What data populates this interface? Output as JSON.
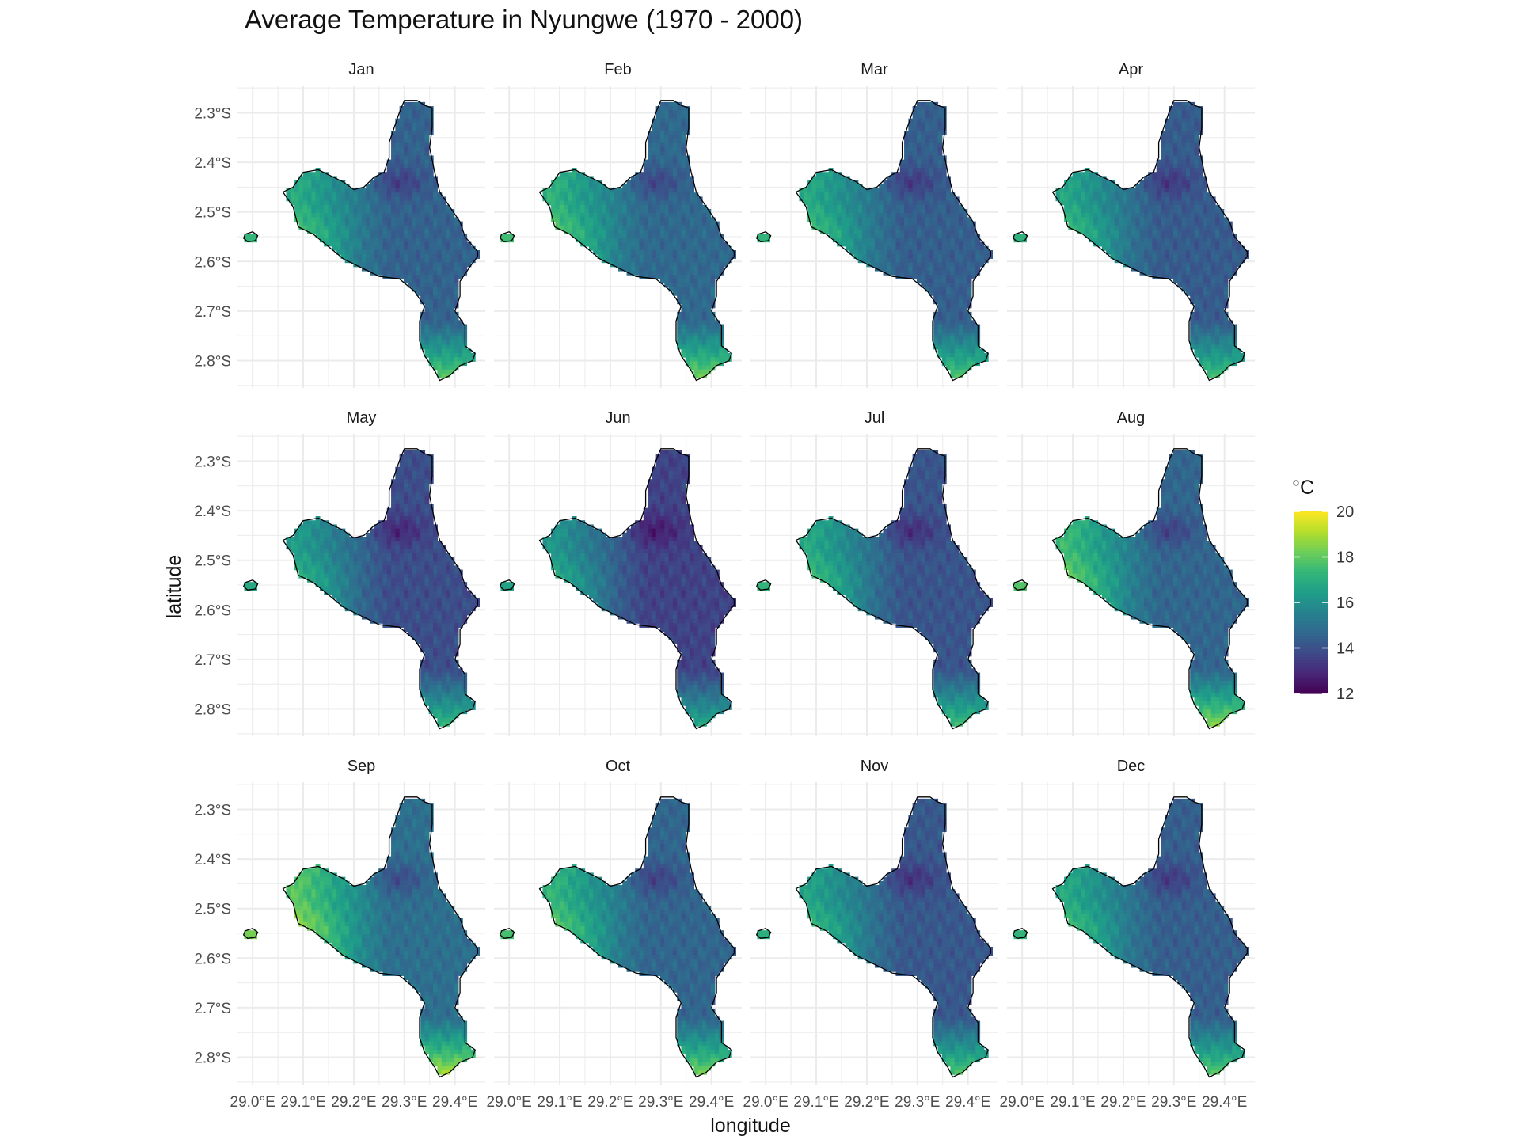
{
  "chart_data": {
    "type": "heatmap",
    "title": "Average Temperature in Nyungwe (1970 - 2000)",
    "xlabel": "longitude",
    "ylabel": "latitude",
    "facet_labels": [
      "Jan",
      "Feb",
      "Mar",
      "Apr",
      "May",
      "Jun",
      "Jul",
      "Aug",
      "Sep",
      "Oct",
      "Nov",
      "Dec"
    ],
    "x_ticks": [
      {
        "value": 29.0,
        "label": "29.0°E"
      },
      {
        "value": 29.1,
        "label": "29.1°E"
      },
      {
        "value": 29.2,
        "label": "29.2°E"
      },
      {
        "value": 29.3,
        "label": "29.3°E"
      },
      {
        "value": 29.4,
        "label": "29.4°E"
      }
    ],
    "y_ticks": [
      {
        "value": -2.3,
        "label": "2.3°S"
      },
      {
        "value": -2.4,
        "label": "2.4°S"
      },
      {
        "value": -2.5,
        "label": "2.5°S"
      },
      {
        "value": -2.6,
        "label": "2.6°S"
      },
      {
        "value": -2.7,
        "label": "2.7°S"
      },
      {
        "value": -2.8,
        "label": "2.8°S"
      }
    ],
    "xlim": [
      28.97,
      29.46
    ],
    "ylim": [
      -2.855,
      -2.245
    ],
    "legend": {
      "title": "°C",
      "min": 12,
      "max": 20,
      "ticks": [
        12,
        14,
        16,
        18,
        20
      ],
      "position": "right"
    },
    "colorscale": [
      "#440154",
      "#3b528b",
      "#21908c",
      "#5dc863",
      "#fde725"
    ],
    "grid": true,
    "region_outline": [
      [
        29.26,
        -2.42
      ],
      [
        29.27,
        -2.39
      ],
      [
        29.27,
        -2.36
      ],
      [
        29.28,
        -2.33
      ],
      [
        29.29,
        -2.3
      ],
      [
        29.3,
        -2.275
      ],
      [
        29.325,
        -2.275
      ],
      [
        29.34,
        -2.285
      ],
      [
        29.355,
        -2.29
      ],
      [
        29.355,
        -2.33
      ],
      [
        29.35,
        -2.37
      ],
      [
        29.36,
        -2.42
      ],
      [
        29.37,
        -2.46
      ],
      [
        29.39,
        -2.49
      ],
      [
        29.41,
        -2.52
      ],
      [
        29.42,
        -2.55
      ],
      [
        29.445,
        -2.58
      ],
      [
        29.445,
        -2.59
      ],
      [
        29.43,
        -2.61
      ],
      [
        29.41,
        -2.64
      ],
      [
        29.41,
        -2.67
      ],
      [
        29.4,
        -2.7
      ],
      [
        29.42,
        -2.73
      ],
      [
        29.42,
        -2.77
      ],
      [
        29.44,
        -2.785
      ],
      [
        29.435,
        -2.8
      ],
      [
        29.41,
        -2.81
      ],
      [
        29.39,
        -2.83
      ],
      [
        29.37,
        -2.84
      ],
      [
        29.36,
        -2.82
      ],
      [
        29.34,
        -2.79
      ],
      [
        29.33,
        -2.76
      ],
      [
        29.33,
        -2.72
      ],
      [
        29.34,
        -2.69
      ],
      [
        29.32,
        -2.66
      ],
      [
        29.29,
        -2.635
      ],
      [
        29.25,
        -2.63
      ],
      [
        29.22,
        -2.615
      ],
      [
        29.18,
        -2.595
      ],
      [
        29.15,
        -2.57
      ],
      [
        29.12,
        -2.545
      ],
      [
        29.09,
        -2.53
      ],
      [
        29.08,
        -2.49
      ],
      [
        29.06,
        -2.46
      ],
      [
        29.08,
        -2.45
      ],
      [
        29.1,
        -2.42
      ],
      [
        29.13,
        -2.415
      ],
      [
        29.16,
        -2.43
      ],
      [
        29.18,
        -2.44
      ],
      [
        29.2,
        -2.455
      ],
      [
        29.22,
        -2.45
      ],
      [
        29.24,
        -2.43
      ]
    ],
    "islet_outline": [
      [
        28.985,
        -2.545
      ],
      [
        29.0,
        -2.54
      ],
      [
        29.01,
        -2.548
      ],
      [
        29.005,
        -2.558
      ],
      [
        28.99,
        -2.56
      ],
      [
        28.982,
        -2.553
      ]
    ],
    "series": [
      {
        "name": "Jan",
        "mean": 15.6,
        "west_mean": 16.9,
        "ne_mean": 14.5,
        "south_tip": 18.2
      },
      {
        "name": "Feb",
        "mean": 15.8,
        "west_mean": 17.1,
        "ne_mean": 14.7,
        "south_tip": 18.5
      },
      {
        "name": "Mar",
        "mean": 15.5,
        "west_mean": 16.8,
        "ne_mean": 14.4,
        "south_tip": 18.0
      },
      {
        "name": "Apr",
        "mean": 15.4,
        "west_mean": 16.7,
        "ne_mean": 14.3,
        "south_tip": 17.8
      },
      {
        "name": "May",
        "mean": 15.0,
        "west_mean": 16.4,
        "ne_mean": 13.9,
        "south_tip": 17.5
      },
      {
        "name": "Jun",
        "mean": 14.8,
        "west_mean": 16.2,
        "ne_mean": 13.6,
        "south_tip": 17.0
      },
      {
        "name": "Jul",
        "mean": 15.3,
        "west_mean": 16.8,
        "ne_mean": 14.1,
        "south_tip": 17.7
      },
      {
        "name": "Aug",
        "mean": 15.9,
        "west_mean": 17.4,
        "ne_mean": 14.6,
        "south_tip": 18.8
      },
      {
        "name": "Sep",
        "mean": 16.2,
        "west_mean": 17.9,
        "ne_mean": 14.9,
        "south_tip": 19.2
      },
      {
        "name": "Oct",
        "mean": 15.8,
        "west_mean": 17.2,
        "ne_mean": 14.6,
        "south_tip": 18.5
      },
      {
        "name": "Nov",
        "mean": 15.3,
        "west_mean": 16.6,
        "ne_mean": 14.2,
        "south_tip": 18.0
      },
      {
        "name": "Dec",
        "mean": 15.5,
        "west_mean": 16.8,
        "ne_mean": 14.4,
        "south_tip": 18.1
      }
    ]
  }
}
